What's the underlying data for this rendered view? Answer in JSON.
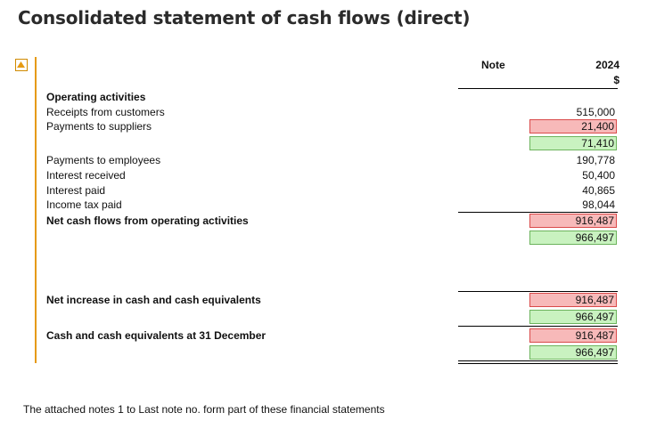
{
  "title": "Consolidated statement of cash flows (direct)",
  "header": {
    "note": "Note",
    "year": "2024",
    "currency": "$"
  },
  "operating": {
    "heading": "Operating activities",
    "receipts_label": "Receipts from customers",
    "receipts_value": "515,000",
    "payments_suppliers_label": "Payments to suppliers",
    "payments_suppliers_value_a": "21,400",
    "payments_suppliers_value_b": "71,410",
    "payments_employees_label": "Payments to employees",
    "payments_employees_value": "190,778",
    "interest_received_label": "Interest received",
    "interest_received_value": "50,400",
    "interest_paid_label": "Interest paid",
    "interest_paid_value": "40,865",
    "income_tax_label": "Income tax paid",
    "income_tax_value": "98,044",
    "net_label": "Net cash flows from operating activities",
    "net_value_a": "916,487",
    "net_value_b": "966,497"
  },
  "summary": {
    "net_increase_label": "Net increase in cash and cash equivalents",
    "net_increase_value_a": "916,487",
    "net_increase_value_b": "966,497",
    "closing_label": "Cash and cash equivalents at 31 December",
    "closing_value_a": "916,487",
    "closing_value_b": "966,497"
  },
  "footer": "The attached notes 1 to Last note no. form part of these financial statements",
  "colors": {
    "accent": "#e69a12",
    "error_bg": "#f7b9b9",
    "ok_bg": "#c9f2c0"
  },
  "icons": {
    "collapse": "collapse-triangle-up-icon"
  }
}
